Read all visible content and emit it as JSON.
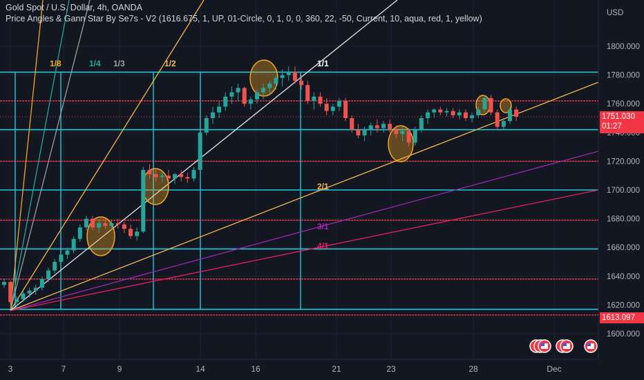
{
  "header": {
    "symbol_line": "Gold Spot / U.S. Dollar, 4h, OANDA",
    "indicator_line": "Price Angles & Gann Star By Se7s - V2 (1616.675, 1, UP, 01-Circle, 0, 1, 0, 0, 360, 22, -50, Current, 10, aqua, red, 1, yellow)"
  },
  "axis": {
    "currency": "USD",
    "y_ticks": [
      "1800.000",
      "1780.000",
      "1760.000",
      "1740.000",
      "1720.000",
      "1700.000",
      "1680.000",
      "1660.000",
      "1640.000",
      "1620.000",
      "1600.000"
    ],
    "x_ticks": [
      "3",
      "7",
      "9",
      "14",
      "16",
      "21",
      "23",
      "28",
      "Dec"
    ]
  },
  "price_tags": {
    "current_price": "1751.030",
    "countdown": "01:27",
    "low_price": "1613.097"
  },
  "colors": {
    "background": "#131722",
    "aqua": "#26c6da",
    "red": "#f23645",
    "yellow": "#f5b94a",
    "up_candle": "#26a69a",
    "down_candle": "#ef5350",
    "white": "#e0e3eb",
    "purple": "#9c27b0",
    "pink": "#e91e63"
  },
  "chart_data": {
    "type": "candlestick",
    "ylim": [
      1592,
      1822
    ],
    "aqua_levels": [
      1782,
      1742,
      1700,
      1659,
      1617
    ],
    "red_levels": [
      1762,
      1720,
      1679,
      1638,
      1613
    ],
    "fan_labels": [
      {
        "text": "1/8",
        "color": "#f5a623"
      },
      {
        "text": "1/4",
        "color": "#26a69a"
      },
      {
        "text": "1/3",
        "color": "#9e9e9e"
      },
      {
        "text": "1/2",
        "color": "#f5b94a"
      },
      {
        "text": "1/1",
        "color": "#ffffff"
      },
      {
        "text": "2/1",
        "color": "#f5b94a"
      },
      {
        "text": "3/1",
        "color": "#9c27b0"
      },
      {
        "text": "4/1",
        "color": "#e91e63"
      }
    ],
    "candles": [
      [
        1634,
        1638,
        1632,
        1636
      ],
      [
        1636,
        1637,
        1620,
        1622
      ],
      [
        1622,
        1626,
        1617,
        1624
      ],
      [
        1624,
        1630,
        1622,
        1628
      ],
      [
        1628,
        1632,
        1625,
        1630
      ],
      [
        1630,
        1634,
        1627,
        1632
      ],
      [
        1632,
        1640,
        1630,
        1638
      ],
      [
        1638,
        1646,
        1636,
        1644
      ],
      [
        1644,
        1652,
        1642,
        1650
      ],
      [
        1650,
        1656,
        1648,
        1655
      ],
      [
        1655,
        1660,
        1652,
        1658
      ],
      [
        1658,
        1668,
        1656,
        1666
      ],
      [
        1666,
        1676,
        1664,
        1674
      ],
      [
        1674,
        1682,
        1672,
        1680
      ],
      [
        1680,
        1682,
        1672,
        1674
      ],
      [
        1674,
        1679,
        1670,
        1677
      ],
      [
        1677,
        1680,
        1673,
        1675
      ],
      [
        1675,
        1679,
        1672,
        1677
      ],
      [
        1677,
        1680,
        1673,
        1676
      ],
      [
        1676,
        1678,
        1670,
        1673
      ],
      [
        1673,
        1676,
        1666,
        1668
      ],
      [
        1668,
        1674,
        1665,
        1671
      ],
      [
        1671,
        1716,
        1670,
        1714
      ],
      [
        1714,
        1718,
        1708,
        1711
      ],
      [
        1711,
        1714,
        1706,
        1709
      ],
      [
        1709,
        1713,
        1705,
        1710
      ],
      [
        1710,
        1714,
        1706,
        1708
      ],
      [
        1708,
        1712,
        1704,
        1711
      ],
      [
        1711,
        1714,
        1706,
        1709
      ],
      [
        1709,
        1712,
        1705,
        1708
      ],
      [
        1708,
        1716,
        1706,
        1714
      ],
      [
        1714,
        1746,
        1712,
        1740
      ],
      [
        1740,
        1752,
        1738,
        1750
      ],
      [
        1750,
        1758,
        1746,
        1754
      ],
      [
        1754,
        1762,
        1750,
        1758
      ],
      [
        1758,
        1768,
        1755,
        1765
      ],
      [
        1765,
        1772,
        1760,
        1768
      ],
      [
        1768,
        1774,
        1762,
        1771
      ],
      [
        1771,
        1772,
        1758,
        1760
      ],
      [
        1760,
        1765,
        1756,
        1763
      ],
      [
        1763,
        1770,
        1760,
        1768
      ],
      [
        1768,
        1774,
        1763,
        1771
      ],
      [
        1771,
        1776,
        1766,
        1774
      ],
      [
        1774,
        1780,
        1770,
        1778
      ],
      [
        1778,
        1784,
        1772,
        1780
      ],
      [
        1780,
        1786,
        1776,
        1782
      ],
      [
        1782,
        1786,
        1774,
        1776
      ],
      [
        1776,
        1780,
        1770,
        1773
      ],
      [
        1773,
        1776,
        1760,
        1762
      ],
      [
        1762,
        1768,
        1756,
        1765
      ],
      [
        1765,
        1768,
        1758,
        1760
      ],
      [
        1760,
        1764,
        1752,
        1755
      ],
      [
        1755,
        1760,
        1752,
        1758
      ],
      [
        1758,
        1764,
        1755,
        1762
      ],
      [
        1762,
        1764,
        1748,
        1750
      ],
      [
        1750,
        1752,
        1740,
        1742
      ],
      [
        1742,
        1746,
        1736,
        1738
      ],
      [
        1738,
        1744,
        1734,
        1742
      ],
      [
        1742,
        1747,
        1738,
        1745
      ],
      [
        1745,
        1749,
        1740,
        1743
      ],
      [
        1743,
        1748,
        1740,
        1746
      ],
      [
        1746,
        1749,
        1740,
        1742
      ],
      [
        1742,
        1745,
        1736,
        1739
      ],
      [
        1739,
        1744,
        1734,
        1741
      ],
      [
        1741,
        1743,
        1730,
        1733
      ],
      [
        1733,
        1744,
        1731,
        1742
      ],
      [
        1742,
        1752,
        1740,
        1750
      ],
      [
        1750,
        1756,
        1746,
        1754
      ],
      [
        1754,
        1757,
        1750,
        1756
      ],
      [
        1756,
        1758,
        1752,
        1754
      ],
      [
        1754,
        1757,
        1751,
        1755
      ],
      [
        1755,
        1757,
        1750,
        1752
      ],
      [
        1752,
        1756,
        1749,
        1754
      ],
      [
        1754,
        1756,
        1748,
        1750
      ],
      [
        1750,
        1754,
        1747,
        1752
      ],
      [
        1752,
        1758,
        1750,
        1756
      ],
      [
        1756,
        1766,
        1754,
        1764
      ],
      [
        1764,
        1766,
        1752,
        1754
      ],
      [
        1754,
        1756,
        1742,
        1744
      ],
      [
        1744,
        1750,
        1742,
        1748
      ],
      [
        1748,
        1758,
        1746,
        1756
      ],
      [
        1756,
        1758,
        1748,
        1751
      ]
    ]
  }
}
